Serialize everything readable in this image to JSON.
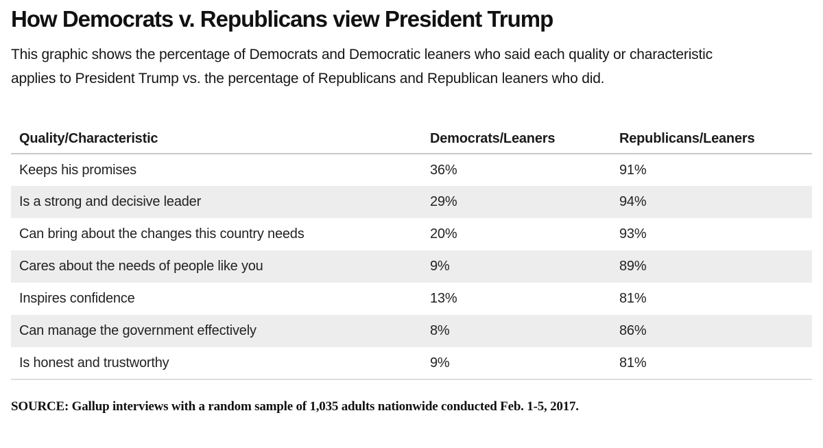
{
  "page": {
    "title": "How Democrats v. Republicans view President Trump",
    "subtitle": "This graphic shows the percentage of Democrats and Democratic leaners who said each quality or characteristic applies to President Trump vs. the percentage of Republicans and Republican leaners who did.",
    "source": "SOURCE: Gallup interviews with a random sample of 1,035 adults nationwide conducted Feb. 1-5, 2017."
  },
  "colors": {
    "text": "#1a1a1a",
    "alt_row_background": "#ededed",
    "header_border": "#c9c9c9",
    "bottom_border": "#dcdcdc"
  },
  "chart_data": {
    "type": "table",
    "title": "How Democrats v. Republicans view President Trump",
    "columns": [
      "Quality/Characteristic",
      "Democrats/Leaners",
      "Republicans/Leaners"
    ],
    "rows": [
      {
        "quality": "Keeps his promises",
        "democrats": "36%",
        "republicans": "91%"
      },
      {
        "quality": "Is a strong and decisive leader",
        "democrats": "29%",
        "republicans": "94%"
      },
      {
        "quality": "Can bring about the changes this country needs",
        "democrats": "20%",
        "republicans": "93%"
      },
      {
        "quality": "Cares about the needs of people like you",
        "democrats": "9%",
        "republicans": "89%"
      },
      {
        "quality": "Inspires confidence",
        "democrats": "13%",
        "republicans": "81%"
      },
      {
        "quality": "Can manage the government effectively",
        "democrats": "8%",
        "republicans": "86%"
      },
      {
        "quality": "Is honest and trustworthy",
        "democrats": "9%",
        "republicans": "81%"
      }
    ],
    "series": [
      {
        "name": "Democrats/Leaners",
        "values": [
          36,
          29,
          20,
          9,
          13,
          8,
          9
        ]
      },
      {
        "name": "Republicans/Leaners",
        "values": [
          91,
          94,
          93,
          89,
          81,
          86,
          81
        ]
      }
    ],
    "categories": [
      "Keeps his promises",
      "Is a strong and decisive leader",
      "Can bring about the changes this country needs",
      "Cares about the needs of people like you",
      "Inspires confidence",
      "Can manage the government effectively",
      "Is honest and trustworthy"
    ],
    "value_unit": "%"
  }
}
